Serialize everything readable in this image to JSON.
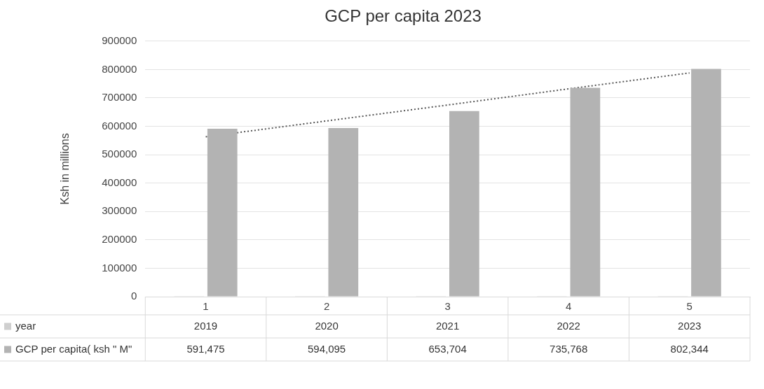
{
  "chart_data": {
    "type": "bar",
    "title": "GCP per capita 2023",
    "ylabel": "Ksh in millions",
    "categories": [
      "1",
      "2",
      "3",
      "4",
      "5"
    ],
    "series": [
      {
        "name": "year",
        "color": "#cfcfcf",
        "values": [
          2019,
          2020,
          2021,
          2022,
          2023
        ],
        "value_labels": [
          "2019",
          "2020",
          "2021",
          "2022",
          "2023"
        ]
      },
      {
        "name": "GCP per capita( ksh \" M\"",
        "color": "#b3b3b3",
        "values": [
          591475,
          594095,
          653704,
          735768,
          802344
        ],
        "value_labels": [
          "591,475",
          "594,095",
          "653,704",
          "735,768",
          "802,344"
        ]
      },
      {
        "type": "line",
        "color": "#555555",
        "line_style": "dotted",
        "marker": "none",
        "values": [
          563000,
          619000,
          675000,
          732000,
          788000
        ]
      }
    ],
    "ylim": [
      0,
      900000
    ],
    "yticks": [
      0,
      100000,
      200000,
      300000,
      400000,
      500000,
      600000,
      700000,
      800000,
      900000
    ],
    "grid": "y",
    "legend": "bottom"
  }
}
